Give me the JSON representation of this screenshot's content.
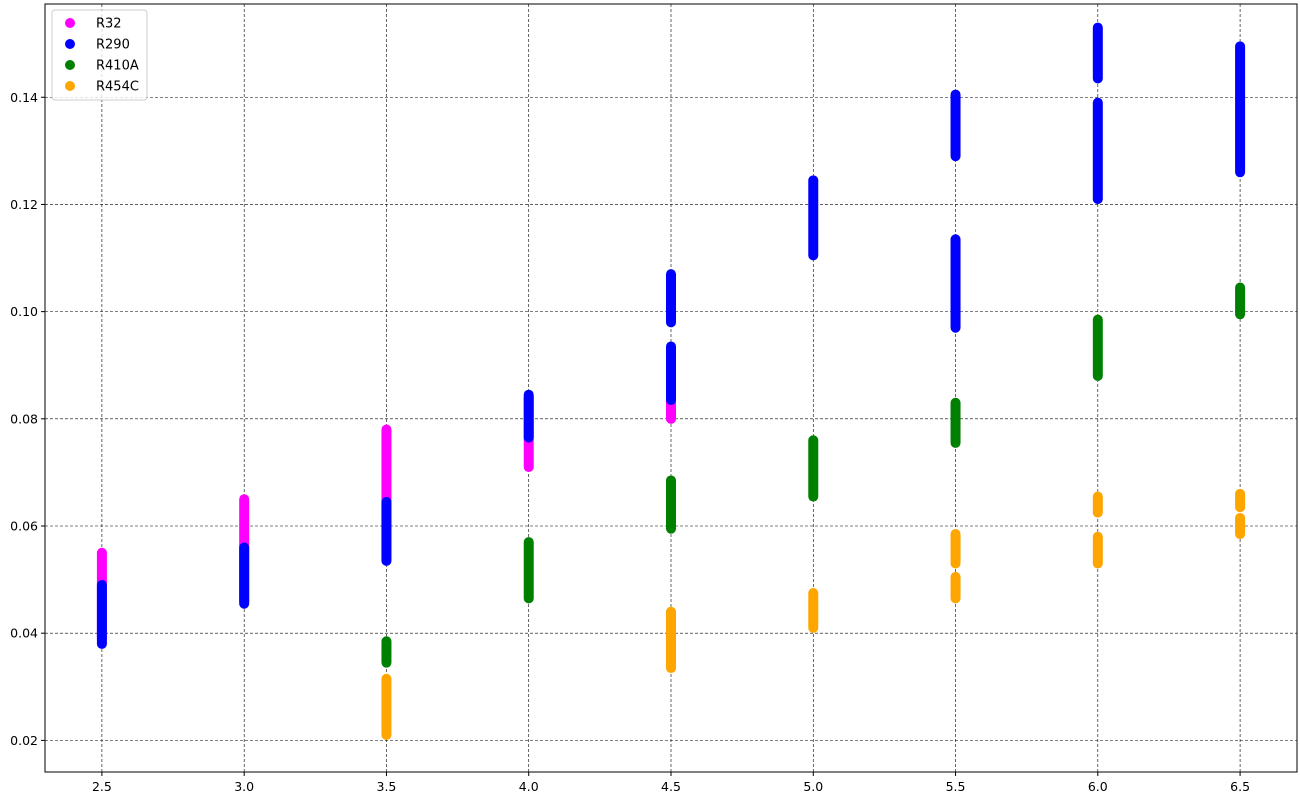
{
  "chart_data": {
    "type": "scatter",
    "title": "",
    "xlabel": "",
    "ylabel": "",
    "xlim": [
      2.3,
      6.7
    ],
    "ylim": [
      0.0141,
      0.1574
    ],
    "xticks": [
      "2.5",
      "3.0",
      "3.5",
      "4.0",
      "4.5",
      "5.0",
      "5.5",
      "6.0",
      "6.5"
    ],
    "yticks": [
      "0.02",
      "0.04",
      "0.06",
      "0.08",
      "0.10",
      "0.12",
      "0.14"
    ],
    "grid": true,
    "legend_position": "top-left",
    "series": [
      {
        "name": "R32",
        "color": "#ff00ff",
        "ranges": [
          {
            "x": 2.5,
            "y": [
              0.039,
              0.055
            ]
          },
          {
            "x": 3.0,
            "y": [
              0.046,
              0.065
            ]
          },
          {
            "x": 3.5,
            "y": [
              0.054,
              0.078
            ]
          },
          {
            "x": 4.0,
            "y": [
              0.071,
              0.084
            ]
          },
          {
            "x": 4.5,
            "y": [
              0.08,
              0.093
            ]
          }
        ]
      },
      {
        "name": "R290",
        "color": "#0000ff",
        "ranges": [
          {
            "x": 2.5,
            "y": [
              0.038,
              0.049
            ]
          },
          {
            "x": 3.0,
            "y": [
              0.0455,
              0.056
            ]
          },
          {
            "x": 3.5,
            "y": [
              0.0535,
              0.0645
            ]
          },
          {
            "x": 4.0,
            "y": [
              0.0765,
              0.0845
            ]
          },
          {
            "x": 4.5,
            "y": [
              0.0835,
              0.0935
            ]
          },
          {
            "x": 4.5,
            "y": [
              0.098,
              0.107
            ]
          },
          {
            "x": 5.0,
            "y": [
              0.1105,
              0.1245
            ]
          },
          {
            "x": 5.5,
            "y": [
              0.097,
              0.1135
            ]
          },
          {
            "x": 5.5,
            "y": [
              0.129,
              0.1405
            ]
          },
          {
            "x": 6.0,
            "y": [
              0.121,
              0.139
            ]
          },
          {
            "x": 6.0,
            "y": [
              0.1435,
              0.153
            ]
          },
          {
            "x": 6.5,
            "y": [
              0.126,
              0.1495
            ]
          }
        ]
      },
      {
        "name": "R410A",
        "color": "#008000",
        "ranges": [
          {
            "x": 3.5,
            "y": [
              0.0345,
              0.0385
            ]
          },
          {
            "x": 4.0,
            "y": [
              0.0465,
              0.057
            ]
          },
          {
            "x": 4.5,
            "y": [
              0.0595,
              0.0685
            ]
          },
          {
            "x": 5.0,
            "y": [
              0.0655,
              0.076
            ]
          },
          {
            "x": 5.5,
            "y": [
              0.0755,
              0.083
            ]
          },
          {
            "x": 6.0,
            "y": [
              0.088,
              0.0985
            ]
          },
          {
            "x": 6.5,
            "y": [
              0.0995,
              0.1045
            ]
          }
        ]
      },
      {
        "name": "R454C",
        "color": "#ffa500",
        "ranges": [
          {
            "x": 3.5,
            "y": [
              0.021,
              0.0315
            ]
          },
          {
            "x": 4.5,
            "y": [
              0.0335,
              0.044
            ]
          },
          {
            "x": 5.0,
            "y": [
              0.041,
              0.0475
            ]
          },
          {
            "x": 5.5,
            "y": [
              0.0465,
              0.0505
            ]
          },
          {
            "x": 5.5,
            "y": [
              0.053,
              0.0585
            ]
          },
          {
            "x": 6.0,
            "y": [
              0.053,
              0.058
            ]
          },
          {
            "x": 6.0,
            "y": [
              0.0625,
              0.0655
            ]
          },
          {
            "x": 6.5,
            "y": [
              0.0585,
              0.0615
            ]
          },
          {
            "x": 6.5,
            "y": [
              0.0635,
              0.066
            ]
          }
        ]
      }
    ]
  }
}
